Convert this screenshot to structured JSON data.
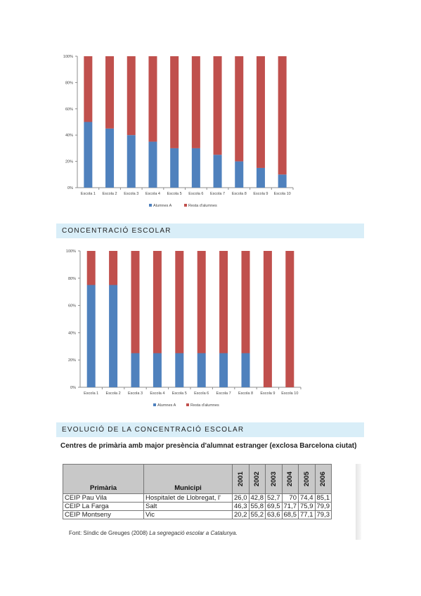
{
  "chart_data": [
    {
      "type": "bar",
      "stacked": true,
      "percent": true,
      "categories": [
        "Escola 1",
        "Escola 2",
        "Escola 3",
        "Escola 4",
        "Escola 5",
        "Escola 6",
        "Escola 7",
        "Escola 8",
        "Escola 9",
        "Escola 10"
      ],
      "series": [
        {
          "name": "Alumnes A",
          "color": "#4f81bd",
          "values": [
            50,
            45,
            40,
            35,
            30,
            30,
            25,
            20,
            15,
            10
          ]
        },
        {
          "name": "Resta d'alumnes",
          "color": "#c0504d",
          "values": [
            50,
            55,
            60,
            65,
            70,
            70,
            75,
            80,
            85,
            90
          ]
        }
      ],
      "y_ticks": [
        "0%",
        "20%",
        "40%",
        "60%",
        "80%",
        "100%"
      ],
      "ylim": [
        0,
        100
      ],
      "legend": "bottom",
      "grid": false
    },
    {
      "type": "bar",
      "stacked": true,
      "percent": true,
      "categories": [
        "Escola 1",
        "Escola 2",
        "Escola 3",
        "Escola 4",
        "Escola 5",
        "Escola 6",
        "Escola 7",
        "Escola 8",
        "Escola 9",
        "Escola 10"
      ],
      "series": [
        {
          "name": "Alumnes A",
          "color": "#4f81bd",
          "values": [
            75,
            75,
            25,
            25,
            25,
            25,
            25,
            25,
            0,
            0
          ]
        },
        {
          "name": "Resta d'alumnes",
          "color": "#c0504d",
          "values": [
            25,
            25,
            75,
            75,
            75,
            75,
            75,
            75,
            100,
            100
          ]
        }
      ],
      "y_ticks": [
        "0%",
        "20%",
        "40%",
        "60%",
        "80%",
        "100%"
      ],
      "ylim": [
        0,
        100
      ],
      "legend": "bottom",
      "grid": false
    }
  ],
  "sections": {
    "concentration": "CONCENTRACIÓ ESCOLAR",
    "evolution": "EVOLUCIÓ DE LA CONCENTRACIÓ ESCOLAR"
  },
  "table": {
    "caption": "Centres de primària amb major presència d'alumnat estranger (exclosa Barcelona ciutat)",
    "headers": {
      "school": "Primària",
      "municipality": "Municipi",
      "years": [
        "2001",
        "2002",
        "2003",
        "2004",
        "2005",
        "2006"
      ]
    },
    "rows": [
      {
        "school": "CEIP Pau Vila",
        "municipality": "Hospitalet de Llobregat, l'",
        "values": [
          "26,0",
          "42,8",
          "52,7",
          "70",
          "74,4",
          "85,1"
        ]
      },
      {
        "school": "CEIP La Farga",
        "municipality": "Salt",
        "values": [
          "46,3",
          "55,8",
          "69,5",
          "71,7",
          "75,9",
          "79,9"
        ]
      },
      {
        "school": "CEIP Montseny",
        "municipality": "Vic",
        "values": [
          "20,2",
          "55,2",
          "63,6",
          "68,5",
          "77,1",
          "79,3"
        ]
      }
    ]
  },
  "source": {
    "prefix": "Font: Síndic de Greuges (2008) ",
    "title": "La segregació escolar a Catalunya."
  }
}
